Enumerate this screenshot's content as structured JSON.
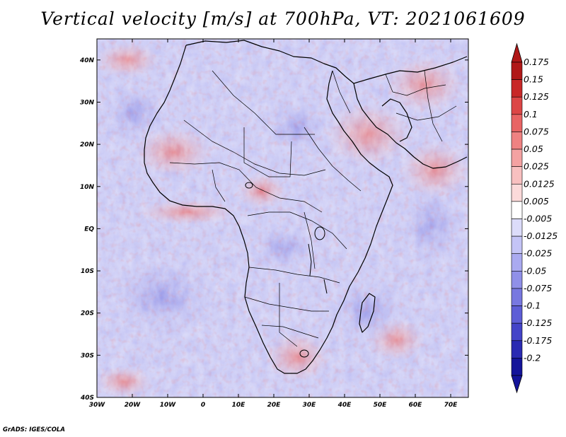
{
  "title": "Vertical velocity [m/s] at 700hPa, VT: 2021061609",
  "credit": "GrADS: IGES/COLA",
  "axes": {
    "lat_labels": [
      "40N",
      "30N",
      "20N",
      "10N",
      "EQ",
      "10S",
      "20S",
      "30S",
      "40S"
    ],
    "lon_labels": [
      "30W",
      "20W",
      "10W",
      "0",
      "10E",
      "20E",
      "30E",
      "40E",
      "50E",
      "60E",
      "70E"
    ]
  },
  "colorbar": {
    "labels": [
      "0.175",
      "0.15",
      "0.125",
      "0.1",
      "0.075",
      "0.05",
      "0.025",
      "0.0125",
      "0.005",
      "-0.005",
      "-0.0125",
      "-0.025",
      "-0.05",
      "-0.075",
      "-0.1",
      "-0.125",
      "-0.175",
      "-0.2"
    ],
    "colors": [
      "#b01818",
      "#c82828",
      "#dc4646",
      "#e86464",
      "#ef8282",
      "#f4a2a2",
      "#f8c0c0",
      "#fbdada",
      "#ffffff",
      "#dcdcfa",
      "#c4c4f6",
      "#aaaaf0",
      "#9090e8",
      "#7878e0",
      "#5e5ed6",
      "#4444c8",
      "#2a2ab2",
      "#14149a"
    ]
  },
  "map": {
    "extent": {
      "lon_min": -30,
      "lon_max": 75,
      "lat_min": -40,
      "lat_max": 45
    },
    "field": "vertical velocity",
    "level": "700hPa",
    "valid_time": "2021061609"
  }
}
